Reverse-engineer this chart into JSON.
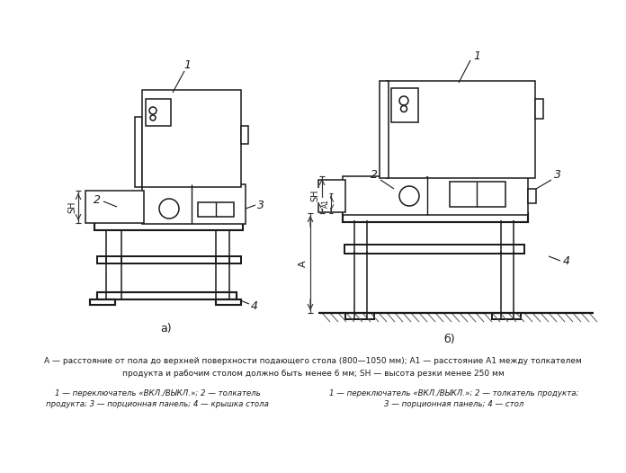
{
  "bg_color": "#ffffff",
  "line_color": "#1a1a1a",
  "text_color": "#1a1a1a",
  "fig_width": 6.96,
  "fig_height": 5.26,
  "caption_line1": "А — расстояние от пола до верхней поверхности подающего стола (800—1050 мм); А1 — расстояние А1 между толкателем",
  "caption_line2": "продукта и рабочим столом должно быть менее 6 мм; SH — высота резки менее 250 мм",
  "legend_left1": "1 — переключатель «ВКЛ./ВЫКЛ.»; 2 — толкатель",
  "legend_left2": "продукта; 3 — порционная панель; 4 — крышка стола",
  "legend_right1": "1 — переключатель «ВКЛ./ВЫКЛ.»; 2 — толкатель продукта;",
  "legend_right2": "3 — порционная панель; 4 — стол",
  "label_a": "а)",
  "label_b": "б)"
}
